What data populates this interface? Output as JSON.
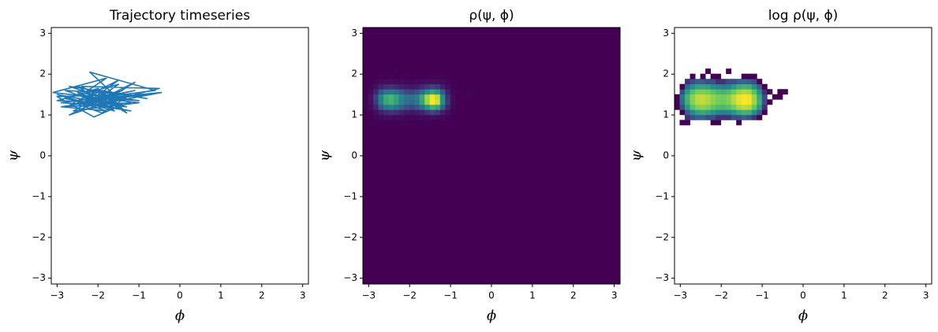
{
  "chart_data": [
    {
      "type": "line",
      "title": "Trajectory timeseries",
      "xlabel": "ϕ",
      "ylabel": "ψ",
      "color": "#1f77b4",
      "x": [
        -2.1,
        -1.4,
        -2.8,
        -1.2,
        -2.5,
        -1.6,
        -3.0,
        -1.9,
        -1.1,
        -2.7,
        -1.5,
        -2.2,
        -0.6,
        -2.9,
        -1.3,
        -2.4,
        -1.8,
        -3.1,
        -1.0,
        -2.6,
        -1.7,
        -2.0,
        -0.45,
        -2.3,
        -1.5,
        -2.8,
        -1.2,
        -2.5,
        -1.9,
        -0.8,
        -2.7,
        -1.4,
        -2.1,
        -3.0,
        -1.6,
        -1.1,
        -2.4,
        -1.8,
        -2.9,
        -1.3,
        -0.7,
        -2.2,
        -1.5,
        -2.6,
        -1.9,
        -1.2,
        -2.8,
        -1.7,
        -2.3,
        -1.0,
        -2.5,
        -1.4,
        -2.0,
        -3.0,
        -1.6,
        -1.3,
        -2.4,
        -0.5,
        -2.1,
        -1.8
      ],
      "values": [
        1.4,
        1.6,
        1.2,
        1.3,
        1.7,
        1.1,
        1.5,
        1.3,
        1.8,
        1.0,
        1.4,
        2.05,
        1.6,
        1.3,
        1.2,
        1.5,
        1.9,
        1.55,
        1.3,
        1.1,
        1.6,
        1.4,
        1.55,
        1.2,
        1.75,
        1.4,
        1.1,
        1.3,
        1.6,
        1.4,
        1.7,
        1.25,
        0.95,
        1.45,
        1.5,
        1.6,
        1.3,
        1.1,
        1.2,
        1.45,
        1.5,
        1.35,
        1.85,
        1.3,
        1.05,
        1.5,
        1.6,
        1.2,
        1.45,
        1.35,
        1.55,
        1.15,
        1.65,
        1.35,
        1.3,
        1.05,
        1.7,
        1.65,
        1.25,
        1.5
      ],
      "xlim": [
        -3.1416,
        3.1416
      ],
      "ylim": [
        -3.1416,
        3.1416
      ],
      "xticks": [
        {
          "value": -3,
          "label": "−3"
        },
        {
          "value": -2,
          "label": "−2"
        },
        {
          "value": -1,
          "label": "−1"
        },
        0,
        1,
        2,
        3
      ],
      "yticks": [
        {
          "value": -3,
          "label": "−3"
        },
        {
          "value": -2,
          "label": "−2"
        },
        {
          "value": -1,
          "label": "−1"
        },
        0,
        1,
        2,
        3
      ]
    },
    {
      "type": "heatmap",
      "title": "ρ(ψ, ϕ)",
      "xlabel": "ϕ",
      "ylabel": "ψ",
      "colormap": "viridis",
      "colorscale": "linear",
      "clim": [
        0,
        100
      ],
      "cell_xlim": [
        -3.1416,
        -0.377
      ],
      "cell_ylim": [
        0.754,
        2.1363
      ],
      "z": [
        [
          0,
          1,
          1,
          0,
          0,
          0,
          0,
          1,
          1,
          0,
          0,
          0,
          1,
          0,
          0,
          0,
          0,
          0,
          0,
          0,
          0,
          0
        ],
        [
          0,
          0,
          2,
          3,
          4,
          4,
          3,
          3,
          2,
          2,
          2,
          3,
          3,
          4,
          3,
          2,
          1,
          0,
          0,
          0,
          0,
          0
        ],
        [
          0,
          1,
          4,
          9,
          14,
          16,
          14,
          11,
          8,
          7,
          8,
          11,
          16,
          20,
          18,
          10,
          4,
          1,
          0,
          0,
          0,
          0
        ],
        [
          1,
          3,
          12,
          28,
          40,
          44,
          38,
          30,
          24,
          22,
          26,
          36,
          52,
          64,
          58,
          32,
          12,
          2,
          0,
          0,
          0,
          0
        ],
        [
          1,
          5,
          18,
          42,
          60,
          64,
          56,
          44,
          36,
          34,
          40,
          58,
          84,
          100,
          92,
          50,
          18,
          3,
          1,
          0,
          0,
          0
        ],
        [
          1,
          6,
          20,
          44,
          62,
          66,
          58,
          46,
          38,
          36,
          42,
          60,
          86,
          98,
          90,
          48,
          16,
          3,
          0,
          1,
          1,
          0
        ],
        [
          0,
          3,
          12,
          26,
          38,
          40,
          36,
          28,
          22,
          20,
          24,
          34,
          48,
          58,
          52,
          28,
          10,
          2,
          1,
          0,
          1,
          1
        ],
        [
          0,
          1,
          5,
          10,
          14,
          15,
          13,
          10,
          8,
          7,
          8,
          12,
          17,
          20,
          18,
          10,
          4,
          1,
          0,
          0,
          0,
          0
        ],
        [
          0,
          0,
          2,
          3,
          4,
          4,
          3,
          3,
          2,
          2,
          3,
          3,
          4,
          5,
          4,
          3,
          1,
          0,
          0,
          0,
          0,
          0
        ],
        [
          0,
          0,
          0,
          1,
          0,
          1,
          0,
          1,
          1,
          0,
          0,
          0,
          0,
          1,
          1,
          1,
          0,
          0,
          0,
          0,
          0,
          0
        ],
        [
          0,
          0,
          0,
          0,
          0,
          0,
          1,
          0,
          0,
          0,
          1,
          0,
          0,
          0,
          0,
          0,
          0,
          0,
          0,
          0,
          0,
          0
        ]
      ],
      "xlim": [
        -3.1416,
        3.1416
      ],
      "ylim": [
        -3.1416,
        3.1416
      ],
      "xticks": [
        {
          "value": -3,
          "label": "−3"
        },
        {
          "value": -2,
          "label": "−2"
        },
        {
          "value": -1,
          "label": "−1"
        },
        0,
        1,
        2,
        3
      ],
      "yticks": [
        {
          "value": -3,
          "label": "−3"
        },
        {
          "value": -2,
          "label": "−2"
        },
        {
          "value": -1,
          "label": "−1"
        },
        0,
        1,
        2,
        3
      ]
    },
    {
      "type": "heatmap",
      "title": "log ρ(ψ, ϕ)",
      "xlabel": "ϕ",
      "ylabel": "ψ",
      "colormap": "viridis",
      "colorscale": "log",
      "clim": [
        1,
        100
      ],
      "cell_xlim": [
        -3.1416,
        -0.377
      ],
      "cell_ylim": [
        0.754,
        2.1363
      ],
      "z": [
        [
          0,
          1,
          1,
          0,
          0,
          0,
          0,
          1,
          1,
          0,
          0,
          0,
          1,
          0,
          0,
          0,
          0,
          0,
          0,
          0,
          0,
          0
        ],
        [
          0,
          0,
          2,
          3,
          4,
          4,
          3,
          3,
          2,
          2,
          2,
          3,
          3,
          4,
          3,
          2,
          1,
          0,
          0,
          0,
          0,
          0
        ],
        [
          0,
          1,
          4,
          9,
          14,
          16,
          14,
          11,
          8,
          7,
          8,
          11,
          16,
          20,
          18,
          10,
          4,
          1,
          0,
          0,
          0,
          0
        ],
        [
          1,
          3,
          12,
          28,
          40,
          44,
          38,
          30,
          24,
          22,
          26,
          36,
          52,
          64,
          58,
          32,
          12,
          2,
          0,
          0,
          0,
          0
        ],
        [
          1,
          5,
          18,
          42,
          60,
          64,
          56,
          44,
          36,
          34,
          40,
          58,
          84,
          100,
          92,
          50,
          18,
          3,
          1,
          0,
          0,
          0
        ],
        [
          1,
          6,
          20,
          44,
          62,
          66,
          58,
          46,
          38,
          36,
          42,
          60,
          86,
          98,
          90,
          48,
          16,
          3,
          0,
          1,
          1,
          0
        ],
        [
          0,
          3,
          12,
          26,
          38,
          40,
          36,
          28,
          22,
          20,
          24,
          34,
          48,
          58,
          52,
          28,
          10,
          2,
          1,
          0,
          1,
          1
        ],
        [
          0,
          1,
          5,
          10,
          14,
          15,
          13,
          10,
          8,
          7,
          8,
          12,
          17,
          20,
          18,
          10,
          4,
          1,
          0,
          0,
          0,
          0
        ],
        [
          0,
          0,
          2,
          3,
          4,
          4,
          3,
          3,
          2,
          2,
          3,
          3,
          4,
          5,
          4,
          3,
          1,
          0,
          0,
          0,
          0,
          0
        ],
        [
          0,
          0,
          0,
          1,
          0,
          1,
          0,
          1,
          1,
          0,
          0,
          0,
          0,
          1,
          1,
          1,
          0,
          0,
          0,
          0,
          0,
          0
        ],
        [
          0,
          0,
          0,
          0,
          0,
          0,
          1,
          0,
          0,
          0,
          1,
          0,
          0,
          0,
          0,
          0,
          0,
          0,
          0,
          0,
          0,
          0
        ]
      ],
      "xlim": [
        -3.1416,
        3.1416
      ],
      "ylim": [
        -3.1416,
        3.1416
      ],
      "xticks": [
        {
          "value": -3,
          "label": "−3"
        },
        {
          "value": -2,
          "label": "−2"
        },
        {
          "value": -1,
          "label": "−1"
        },
        0,
        1,
        2,
        3
      ],
      "yticks": [
        {
          "value": -3,
          "label": "−3"
        },
        {
          "value": -2,
          "label": "−2"
        },
        {
          "value": -1,
          "label": "−1"
        },
        0,
        1,
        2,
        3
      ]
    }
  ]
}
